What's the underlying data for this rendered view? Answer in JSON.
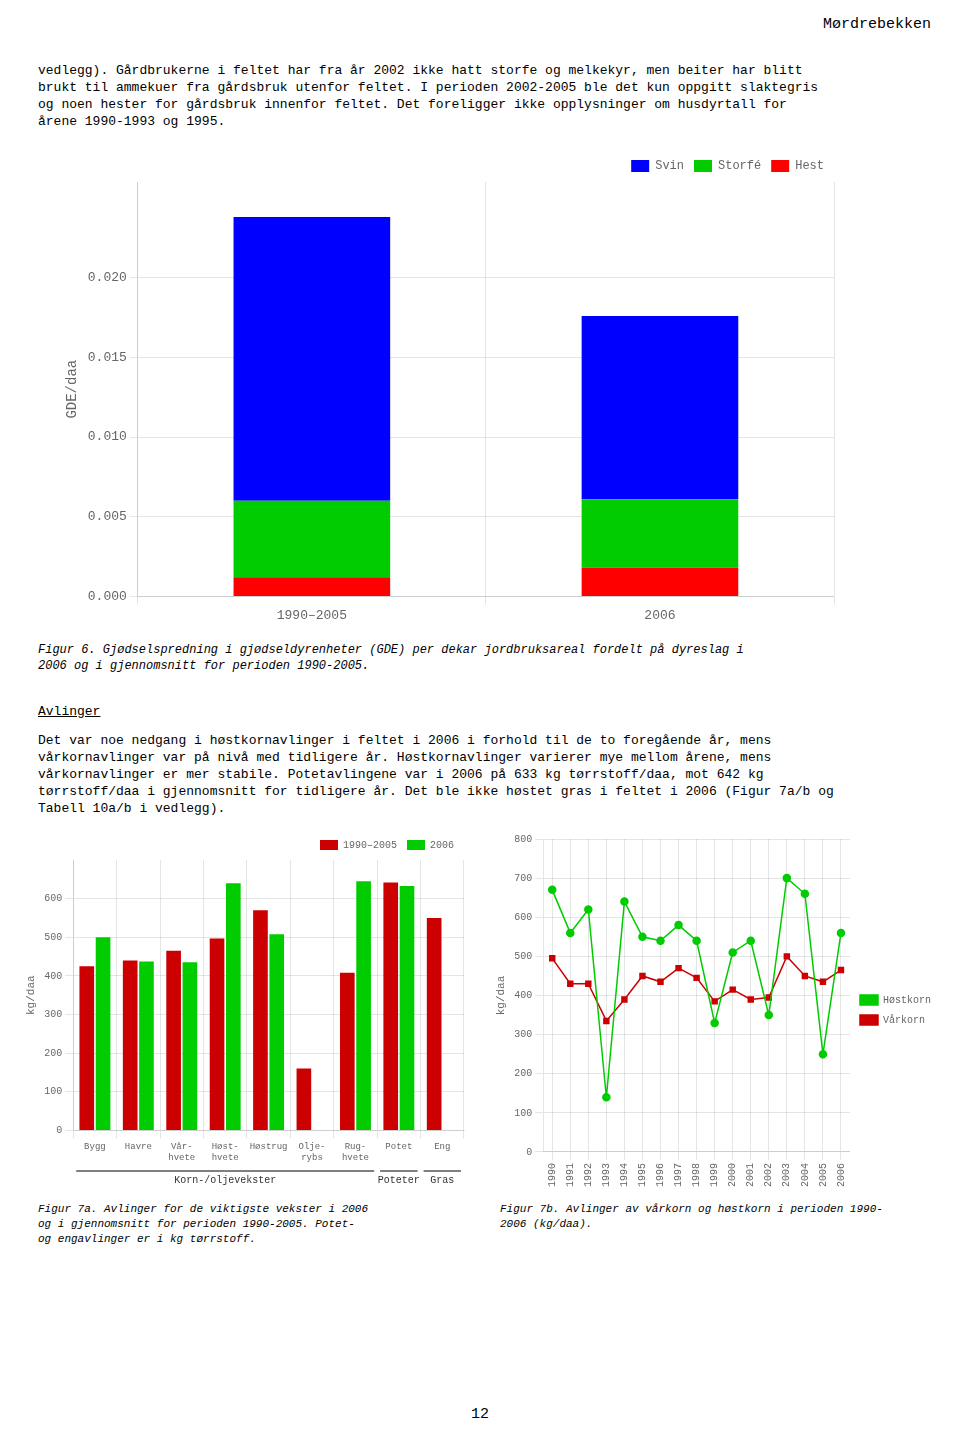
{
  "header": "Mørdrebekken",
  "text_block": "vedlegg). Gårdbrukerne i feltet har fra år 2002 ikke hatt storfe og melkekyr, men beiter har blitt\nbrukt til ammekuer fra gårdsbruk utenfor feltet. I perioden 2002-2005 ble det kun oppgitt slaktegris\nog noen hester for gårdsbruk innenfor feltet. Det foreligger ikke opplysninger om husdyrtall for\nårene 1990-1993 og 1995.",
  "section_title": "Avlinger",
  "section_text": "Det var noe nedgang i høstkornavlinger i feltet i 2006 i forhold til de to foregående år, mens\nvårkornavlinger var på nivå med tidligere år. Høstkornavlinger varierer mye mellom årene, mens\nvårkornavlinger er mer stabile. Potetavlingene var i 2006 på 633 kg tørrstoff/daa, mot 642 kg\ntørrstoff/daa i gjennomsnitt for tidligere år. Det ble ikke høstet gras i feltet i 2006 (Figur 7a/b og\nTabell 10a/b i vedlegg).",
  "page_number": "12",
  "chart_data": [
    {
      "type": "bar",
      "stacked": true,
      "categories": [
        "1990–2005",
        "2006"
      ],
      "series": [
        {
          "name": "Hest",
          "color": "#FF0000",
          "values": [
            0.0012,
            0.0018
          ]
        },
        {
          "name": "Storfé",
          "color": "#00CC00",
          "values": [
            0.0048,
            0.0043
          ]
        },
        {
          "name": "Svin",
          "color": "#0000FF",
          "values": [
            0.0178,
            0.0115
          ]
        }
      ],
      "ylabel": "GDE/daa",
      "ylim": [
        0,
        0.026
      ],
      "yticks": [
        {
          "value": 0,
          "label": "0.000"
        },
        {
          "value": 0.005,
          "label": "0.005"
        },
        {
          "value": 0.01,
          "label": "0.010"
        },
        {
          "value": 0.015,
          "label": "0.015"
        },
        {
          "value": 0.02,
          "label": "0.020"
        }
      ],
      "grid": true,
      "legend": "upper right",
      "caption": "Figur 6. Gjødselspredning i gjødseldyrenheter (GDE) per dekar jordbruksareal fordelt på dyreslag i\n2006 og i gjennomsnitt for perioden 1990-2005."
    },
    {
      "type": "bar",
      "categories": [
        "Bygg",
        "Havre",
        "Vår-\nhvete",
        "Høst-\nhvete",
        "Høstrug",
        "Olje-\nrybs",
        "Rug-\nhvete",
        "Potet",
        "Eng"
      ],
      "series": [
        {
          "name": "1990–2005",
          "color": "#CC0000",
          "values": [
            425,
            440,
            465,
            497,
            570,
            160,
            408,
            642,
            550
          ]
        },
        {
          "name": "2006",
          "color": "#00CC00",
          "values": [
            500,
            437,
            435,
            640,
            508,
            0,
            645,
            633,
            0
          ]
        }
      ],
      "ylabel": "kg/daa",
      "ylim": [
        0,
        700
      ],
      "yticks": [
        0,
        100,
        200,
        300,
        400,
        500,
        600
      ],
      "grid": true,
      "legend": "upper right",
      "annotations": [
        {
          "text": "Korn-/oljevekster",
          "from": "Bygg",
          "to": "Rug-\nhvete"
        },
        {
          "text": "Poteter",
          "from": "Potet",
          "to": "Potet"
        },
        {
          "text": "Gras",
          "from": "Eng",
          "to": "Eng"
        }
      ],
      "caption": "Figur 7a. Avlinger for de viktigste vekster i 2006\nog i gjennomsnitt for perioden 1990-2005. Potet-\nog engavlinger er i kg tørrstoff."
    },
    {
      "type": "line",
      "x": [
        1990,
        1991,
        1992,
        1993,
        1994,
        1995,
        1996,
        1997,
        1998,
        1999,
        2000,
        2001,
        2002,
        2003,
        2004,
        2005,
        2006
      ],
      "series": [
        {
          "name": "Høstkorn",
          "color": "#00CC00",
          "marker": "circle",
          "line_style": "solid",
          "values": [
            670,
            560,
            620,
            140,
            640,
            550,
            540,
            580,
            540,
            330,
            510,
            540,
            350,
            700,
            660,
            250,
            560
          ]
        },
        {
          "name": "Vårkorn",
          "color": "#CC0000",
          "marker": "square",
          "line_style": "solid",
          "values": [
            495,
            430,
            430,
            335,
            390,
            450,
            435,
            470,
            445,
            385,
            415,
            390,
            395,
            500,
            450,
            435,
            465
          ]
        }
      ],
      "xlim": [
        1989.5,
        2006.5
      ],
      "xticks": [
        1990,
        1991,
        1992,
        1993,
        1994,
        1995,
        1996,
        1997,
        1998,
        1999,
        2000,
        2001,
        2002,
        2003,
        2004,
        2005,
        2006
      ],
      "ylabel": "kg/daa",
      "ylim": [
        0,
        800
      ],
      "yticks": [
        0,
        100,
        200,
        300,
        400,
        500,
        600,
        700,
        800
      ],
      "grid": true,
      "legend": "center right",
      "caption": "Figur 7b. Avlinger av vårkorn og høstkorn i perioden 1990-\n2006 (kg/daa)."
    }
  ]
}
